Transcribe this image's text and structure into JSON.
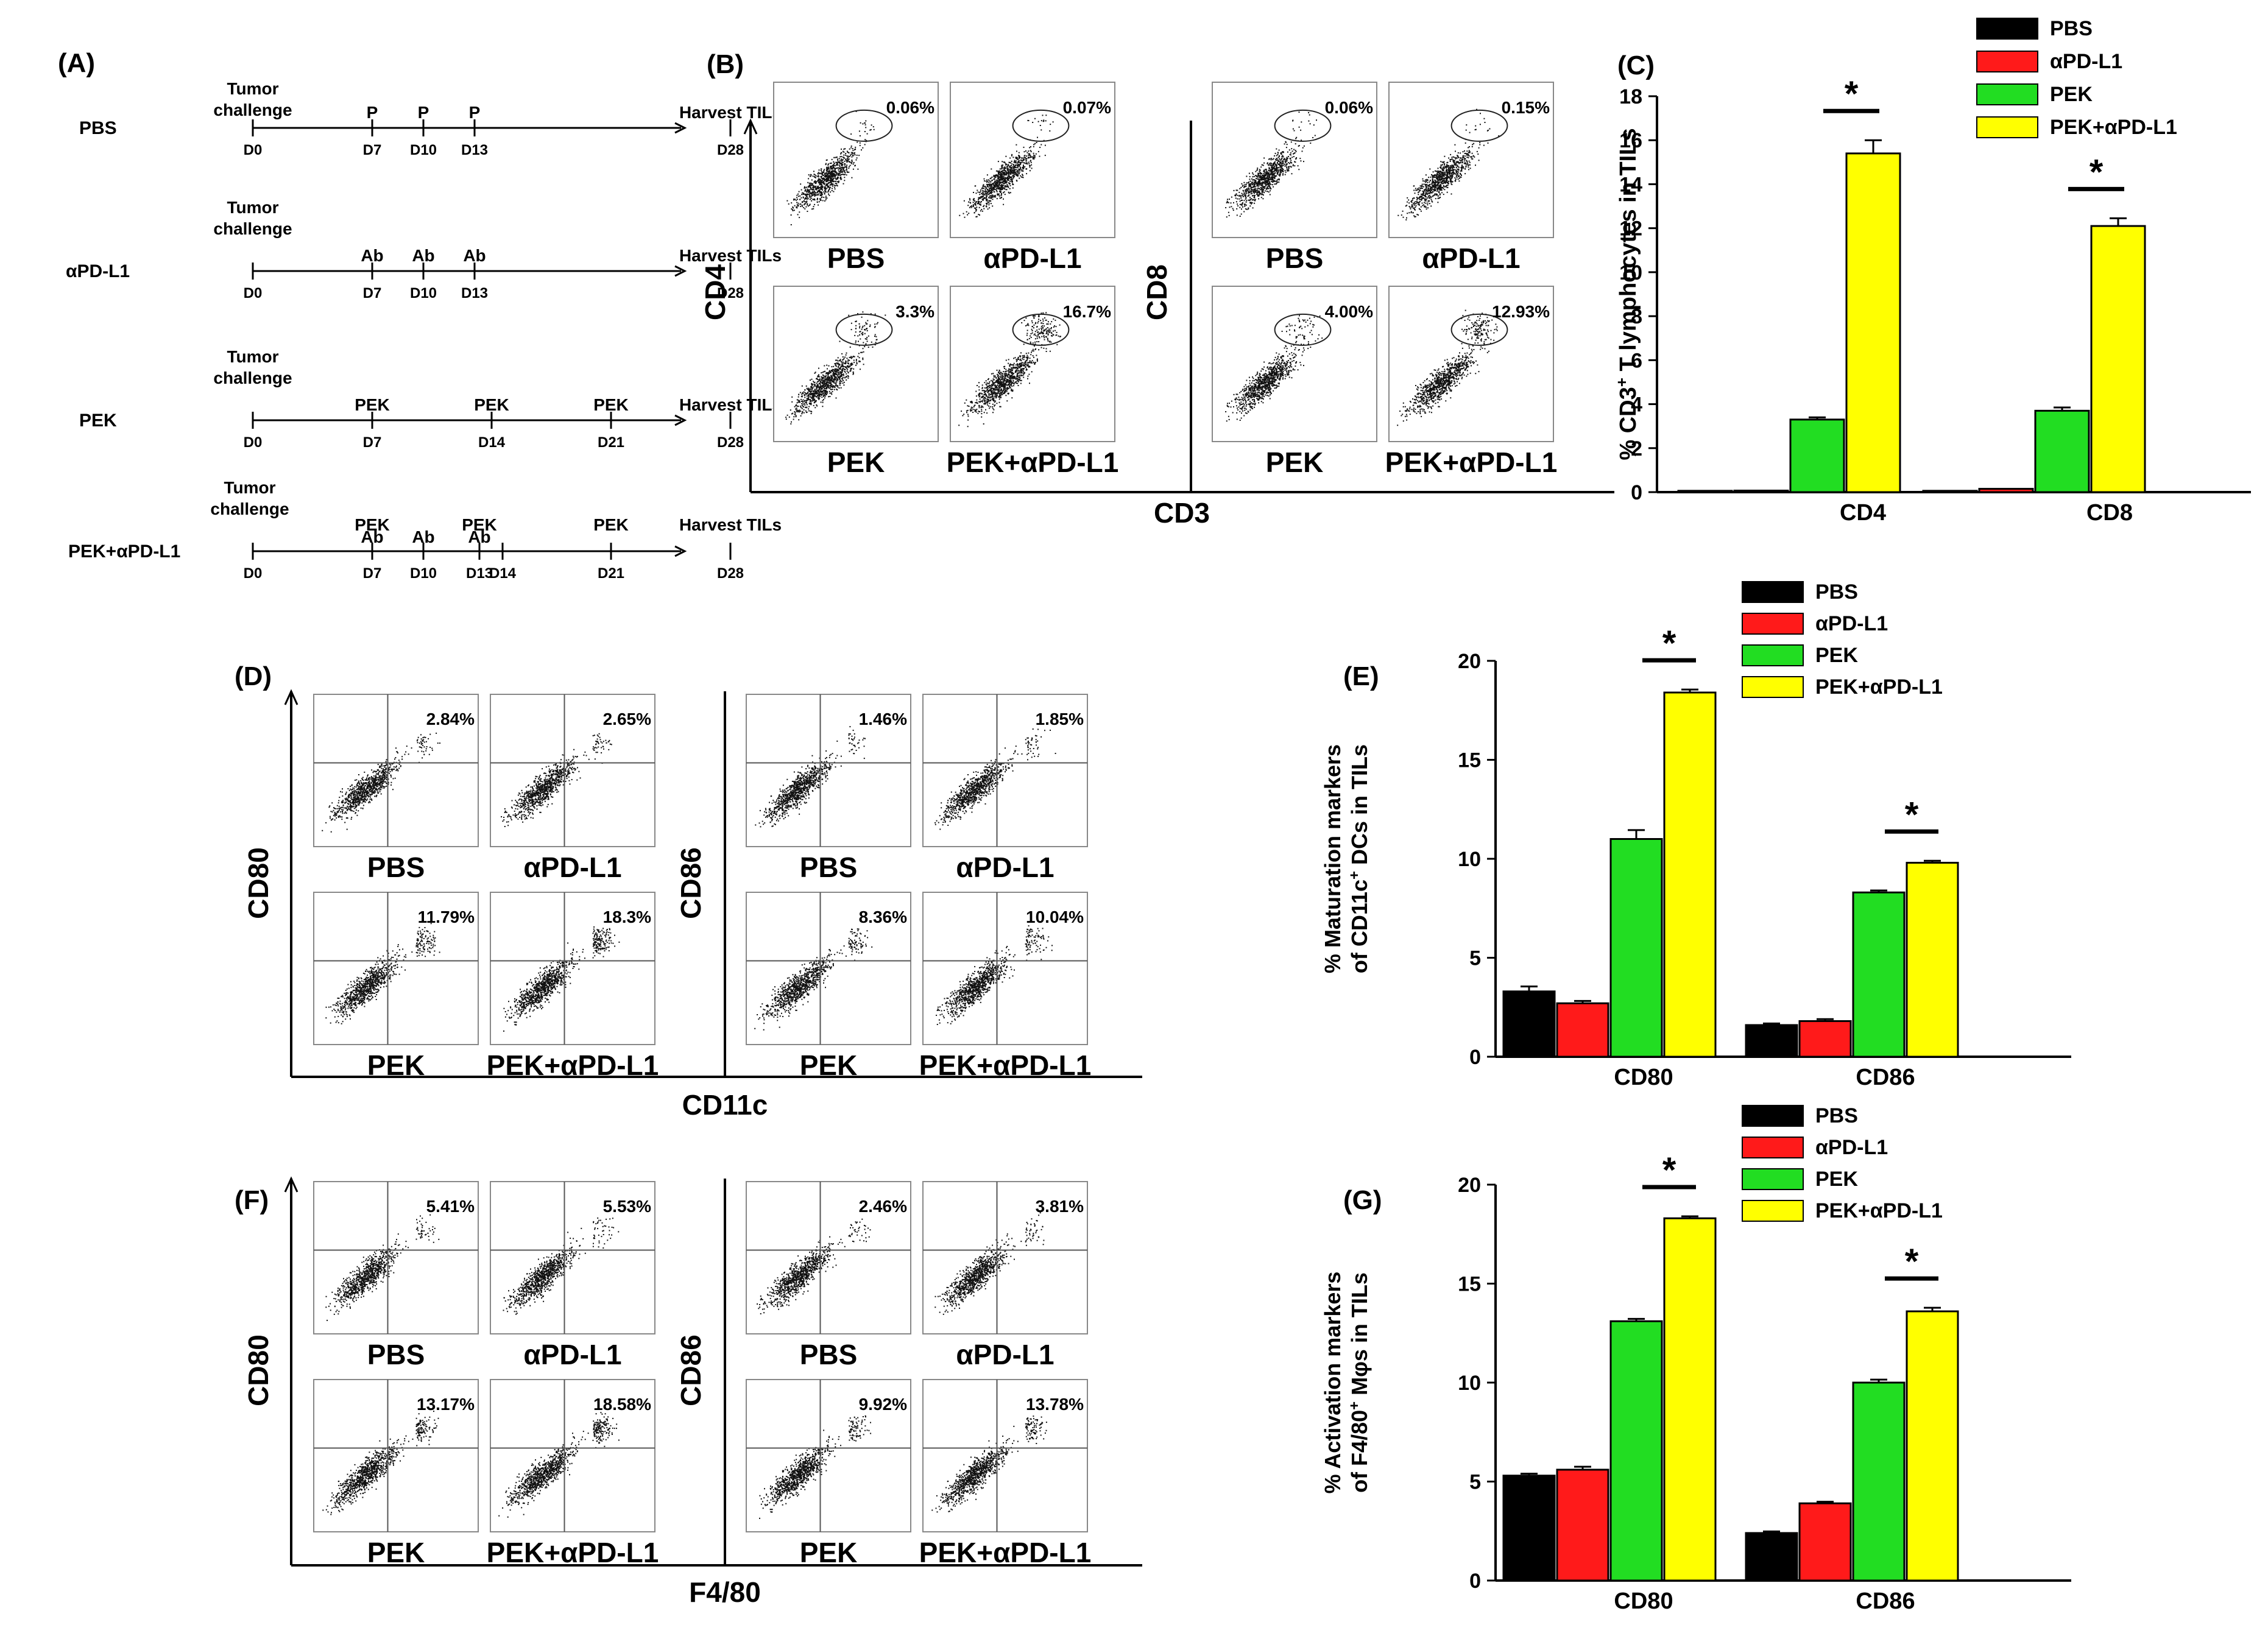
{
  "colors": {
    "PBS": "#000000",
    "aPD-L1": "#ff1a1a",
    "PEK": "#22dd22",
    "PEK+aPD-L1": "#ffff00"
  },
  "panelA": {
    "label": "(A)",
    "rows": [
      {
        "group": "PBS",
        "start": [
          "Tumor",
          "challenge"
        ],
        "marks": [
          {
            "day": "D0",
            "x": 0
          },
          {
            "day": "D7",
            "x": 7,
            "top": "P"
          },
          {
            "day": "D10",
            "x": 10,
            "top": "P"
          },
          {
            "day": "D13",
            "x": 13,
            "top": "P"
          },
          {
            "day": "D28",
            "x": 28,
            "top": "Harvest TILs"
          }
        ]
      },
      {
        "group": "αPD-L1",
        "start": [
          "Tumor",
          "challenge"
        ],
        "marks": [
          {
            "day": "D0",
            "x": 0
          },
          {
            "day": "D7",
            "x": 7,
            "top": "Ab"
          },
          {
            "day": "D10",
            "x": 10,
            "top": "Ab"
          },
          {
            "day": "D13",
            "x": 13,
            "top": "Ab"
          },
          {
            "day": "D28",
            "x": 28,
            "top": "Harvest TILs"
          }
        ]
      },
      {
        "group": "PEK",
        "start": [
          "Tumor",
          "challenge"
        ],
        "marks": [
          {
            "day": "D0",
            "x": 0
          },
          {
            "day": "D7",
            "x": 7,
            "top": "PEK"
          },
          {
            "day": "D14",
            "x": 14,
            "top": "PEK"
          },
          {
            "day": "D21",
            "x": 21,
            "top": "PEK"
          },
          {
            "day": "D28",
            "x": 28,
            "top": "Harvest TILs"
          }
        ]
      },
      {
        "group": "PEK+αPD-L1",
        "start": [
          "Tumor",
          "challenge"
        ],
        "marks": [
          {
            "day": "D0",
            "x": 0
          },
          {
            "day": "D7",
            "x": 7,
            "top": "PEK",
            "mid": "Ab"
          },
          {
            "day": "D10",
            "x": 10,
            "mid": "Ab"
          },
          {
            "day": "D13",
            "x": 13,
            "top": "PEK",
            "mid": "Ab"
          },
          {
            "day": "D14",
            "x": 14
          },
          {
            "day": "D21",
            "x": 21,
            "top": "PEK"
          },
          {
            "day": "D28",
            "x": 28,
            "top": "Harvest TILs"
          }
        ]
      }
    ]
  },
  "flowPanels": [
    {
      "id": "B",
      "label": "(B)",
      "xlabel": "CD3",
      "gate": "ellipse",
      "blocks": [
        {
          "ylabel": "CD4",
          "plots": [
            {
              "name": "PBS",
              "pct": "0.06%"
            },
            {
              "name": "αPD-L1",
              "pct": "0.07%"
            },
            {
              "name": "PEK",
              "pct": "3.3%"
            },
            {
              "name": "PEK+αPD-L1",
              "pct": "16.7%"
            }
          ]
        },
        {
          "ylabel": "CD8",
          "plots": [
            {
              "name": "PBS",
              "pct": "0.06%"
            },
            {
              "name": "αPD-L1",
              "pct": "0.15%"
            },
            {
              "name": "PEK",
              "pct": "4.00%"
            },
            {
              "name": "PEK+αPD-L1",
              "pct": "12.93%"
            }
          ]
        }
      ]
    },
    {
      "id": "D",
      "label": "(D)",
      "xlabel": "CD11c",
      "gate": "quad",
      "blocks": [
        {
          "ylabel": "CD80",
          "plots": [
            {
              "name": "PBS",
              "pct": "2.84%"
            },
            {
              "name": "αPD-L1",
              "pct": "2.65%"
            },
            {
              "name": "PEK",
              "pct": "11.79%"
            },
            {
              "name": "PEK+αPD-L1",
              "pct": "18.3%"
            }
          ]
        },
        {
          "ylabel": "CD86",
          "plots": [
            {
              "name": "PBS",
              "pct": "1.46%"
            },
            {
              "name": "αPD-L1",
              "pct": "1.85%"
            },
            {
              "name": "PEK",
              "pct": "8.36%"
            },
            {
              "name": "PEK+αPD-L1",
              "pct": "10.04%"
            }
          ]
        }
      ]
    },
    {
      "id": "F",
      "label": "(F)",
      "xlabel": "F4/80",
      "gate": "quad",
      "blocks": [
        {
          "ylabel": "CD80",
          "plots": [
            {
              "name": "PBS",
              "pct": "5.41%"
            },
            {
              "name": "αPD-L1",
              "pct": "5.53%"
            },
            {
              "name": "PEK",
              "pct": "13.17%"
            },
            {
              "name": "PEK+αPD-L1",
              "pct": "18.58%"
            }
          ]
        },
        {
          "ylabel": "CD86",
          "plots": [
            {
              "name": "PBS",
              "pct": "2.46%"
            },
            {
              "name": "αPD-L1",
              "pct": "3.81%"
            },
            {
              "name": "PEK",
              "pct": "9.92%"
            },
            {
              "name": "PEK+αPD-L1",
              "pct": "13.78%"
            }
          ]
        }
      ]
    }
  ],
  "chart_data": [
    {
      "panel": "(C)",
      "type": "bar",
      "ylabel": [
        "% CD3",
        "+",
        " T lymphocytes in TILs"
      ],
      "ylim": [
        0,
        18
      ],
      "yticks": [
        0,
        2,
        4,
        6,
        8,
        10,
        12,
        14,
        16,
        18
      ],
      "categories": [
        "CD4",
        "CD8"
      ],
      "legend": [
        "PBS",
        "αPD-L1",
        "PEK",
        "PEK+αPD-L1"
      ],
      "significance": "*",
      "series": [
        {
          "name": "PBS",
          "values": [
            0.06,
            0.06
          ],
          "err": [
            0,
            0
          ]
        },
        {
          "name": "αPD-L1",
          "values": [
            0.07,
            0.15
          ],
          "err": [
            0,
            0
          ]
        },
        {
          "name": "PEK",
          "values": [
            3.3,
            3.7
          ],
          "err": [
            0.1,
            0.15
          ]
        },
        {
          "name": "PEK+αPD-L1",
          "values": [
            15.4,
            12.1
          ],
          "err": [
            0.6,
            0.35
          ]
        }
      ]
    },
    {
      "panel": "(E)",
      "type": "bar",
      "ylabel": [
        "% Maturation markers",
        "of CD11c",
        "+",
        " DCs in TILs"
      ],
      "ylim": [
        0,
        20
      ],
      "yticks": [
        0,
        5,
        10,
        15,
        20
      ],
      "categories": [
        "CD80",
        "CD86"
      ],
      "legend": [
        "PBS",
        "αPD-L1",
        "PEK",
        "PEK+αPD-L1"
      ],
      "significance": "*",
      "series": [
        {
          "name": "PBS",
          "values": [
            3.3,
            1.6
          ],
          "err": [
            0.25,
            0.08
          ]
        },
        {
          "name": "αPD-L1",
          "values": [
            2.7,
            1.8
          ],
          "err": [
            0.12,
            0.1
          ]
        },
        {
          "name": "PEK",
          "values": [
            11.0,
            8.3
          ],
          "err": [
            0.45,
            0.1
          ]
        },
        {
          "name": "PEK+αPD-L1",
          "values": [
            18.4,
            9.8
          ],
          "err": [
            0.15,
            0.1
          ]
        }
      ]
    },
    {
      "panel": "(G)",
      "type": "bar",
      "ylabel": [
        "% Activation markers",
        "of F4/80",
        "+",
        " Mφs in TILs"
      ],
      "ylim": [
        0,
        20
      ],
      "yticks": [
        0,
        5,
        10,
        15,
        20
      ],
      "categories": [
        "CD80",
        "CD86"
      ],
      "legend": [
        "PBS",
        "αPD-L1",
        "PEK",
        "PEK+αPD-L1"
      ],
      "significance": "*",
      "series": [
        {
          "name": "PBS",
          "values": [
            5.3,
            2.4
          ],
          "err": [
            0.1,
            0.08
          ]
        },
        {
          "name": "αPD-L1",
          "values": [
            5.6,
            3.9
          ],
          "err": [
            0.15,
            0.08
          ]
        },
        {
          "name": "PEK",
          "values": [
            13.1,
            10.0
          ],
          "err": [
            0.12,
            0.15
          ]
        },
        {
          "name": "PEK+αPD-L1",
          "values": [
            18.3,
            13.6
          ],
          "err": [
            0.1,
            0.18
          ]
        }
      ]
    }
  ]
}
